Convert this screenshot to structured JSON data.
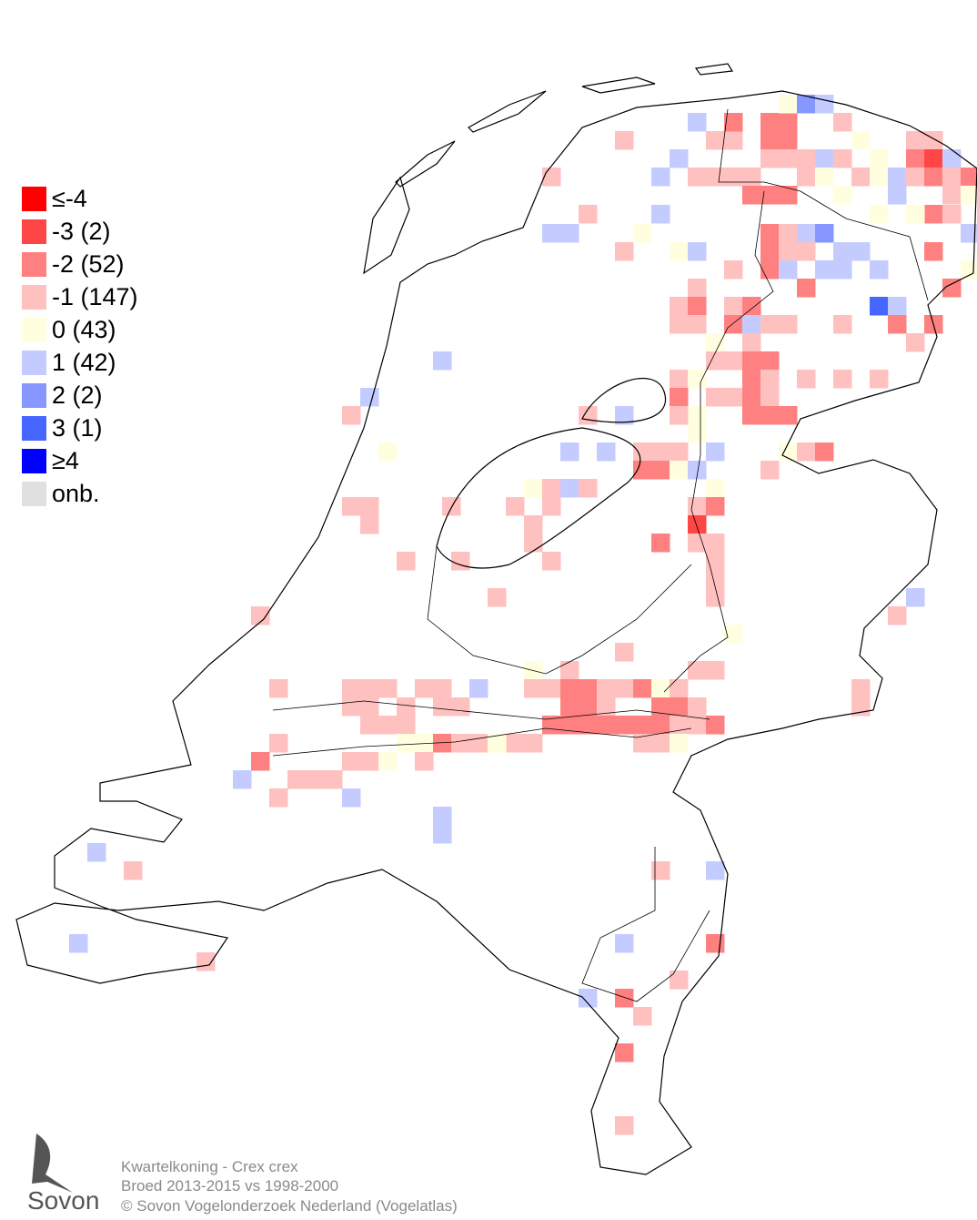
{
  "legend": {
    "items": [
      {
        "label": "≤-4",
        "color": "#ff0000"
      },
      {
        "label": "-3 (2)",
        "color": "#ff4646"
      },
      {
        "label": "-2 (52)",
        "color": "#ff8080"
      },
      {
        "label": "-1 (147)",
        "color": "#ffc0c0"
      },
      {
        "label": "0 (43)",
        "color": "#ffffe0"
      },
      {
        "label": "1 (42)",
        "color": "#c4ccff"
      },
      {
        "label": "2 (2)",
        "color": "#8698ff"
      },
      {
        "label": "3 (1)",
        "color": "#4666ff"
      },
      {
        "label": "≥4",
        "color": "#0000ff"
      },
      {
        "label": "onb.",
        "color": "#e0e0e0"
      }
    ]
  },
  "footer": {
    "lines": [
      "Kwartelkoning - Crex crex",
      "Broed 2013-2015 vs 1998-2000",
      "© Sovon Vogelonderzoek Nederland (Vogelatlas)"
    ],
    "logo": "Sovon"
  }
}
